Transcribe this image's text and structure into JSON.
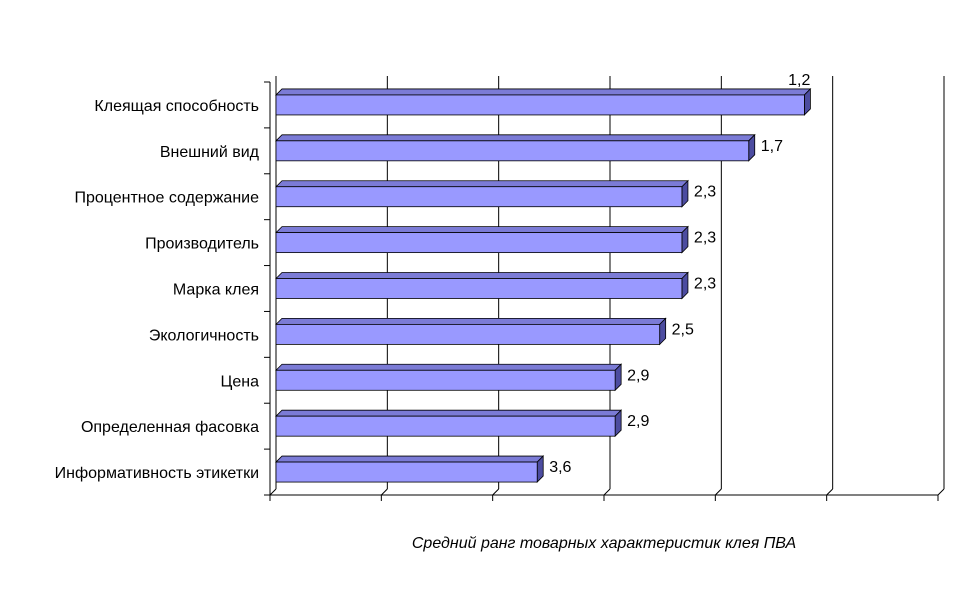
{
  "chart_data": {
    "type": "bar",
    "orientation": "horizontal",
    "render_3d": true,
    "bar_color": "#9999FF",
    "categories": [
      "Клеящая способность",
      "Внешний вид",
      "Процентное содержание",
      "Производитель",
      "Марка клея",
      "Экологичность",
      "Цена",
      "Определенная фасовка",
      "Информативность этикетки"
    ],
    "values": [
      1.2,
      1.7,
      2.3,
      2.3,
      2.3,
      2.5,
      2.9,
      2.9,
      3.6
    ],
    "value_labels": [
      "1,2",
      "1,7",
      "2,3",
      "2,3",
      "2,3",
      "2,5",
      "2,9",
      "2,9",
      "3,6"
    ],
    "xlabel": "Средний ранг товарных характеристик клея ПВА",
    "xlim": [
      0,
      6
    ],
    "x_reversed_from_rank": true,
    "grid": true
  }
}
